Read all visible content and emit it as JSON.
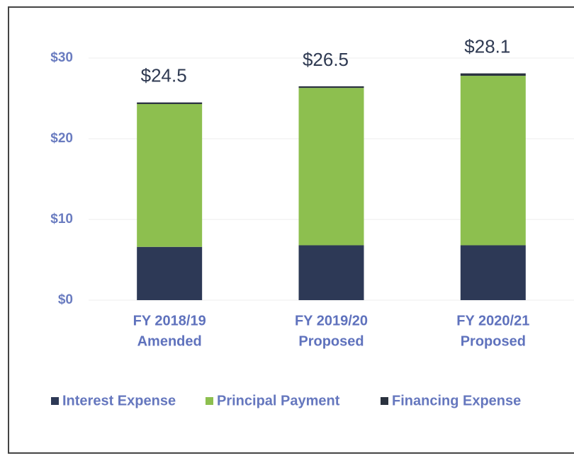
{
  "chart_data": {
    "type": "stacked_bar",
    "categories": [
      [
        "FY 2018/19",
        "Amended"
      ],
      [
        "FY 2019/20",
        "Proposed"
      ],
      [
        "FY 2020/21",
        "Proposed"
      ]
    ],
    "series": [
      {
        "name": "Interest Expense",
        "color": "#2d3956",
        "values": [
          6.6,
          6.8,
          6.8
        ]
      },
      {
        "name": "Principal Payment",
        "color": "#8dbf4f",
        "values": [
          17.7,
          19.5,
          21.0
        ]
      },
      {
        "name": "Financing Expense",
        "color": "#2a323f",
        "values": [
          0.2,
          0.2,
          0.3
        ]
      }
    ],
    "totals": [
      24.5,
      26.5,
      28.1
    ],
    "total_labels": [
      "$24.5",
      "$26.5",
      "$28.1"
    ],
    "ylim": [
      0,
      30
    ],
    "yticks": [
      {
        "value": 0,
        "label": "$0"
      },
      {
        "value": 10,
        "label": "$10"
      },
      {
        "value": 20,
        "label": "$20"
      },
      {
        "value": 30,
        "label": "$30"
      }
    ],
    "grid": true
  }
}
